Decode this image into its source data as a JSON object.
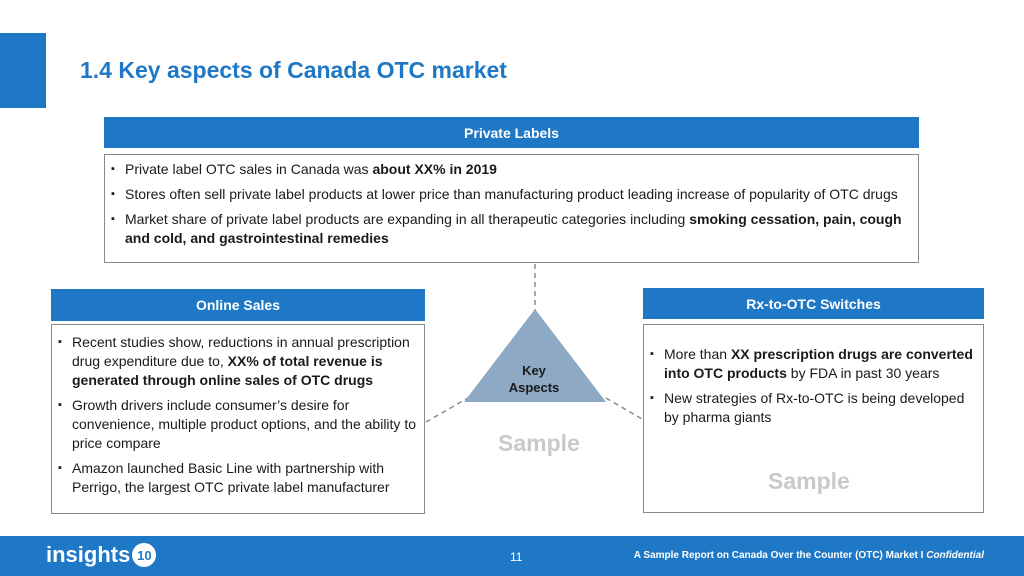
{
  "title": "1.4 Key aspects of Canada OTC market",
  "private_labels": {
    "header": "Private Labels",
    "items": [
      {
        "pre": "Private label OTC sales in Canada was ",
        "bold": "about XX% in 2019",
        "post": ""
      },
      {
        "pre": "Stores often sell private label products at lower price than manufacturing product leading increase of popularity of OTC drugs",
        "bold": "",
        "post": ""
      },
      {
        "pre": "Market share of private label products are expanding in all therapeutic categories including ",
        "bold": "smoking cessation, pain, cough and cold, and gastrointestinal remedies",
        "post": ""
      }
    ]
  },
  "online_sales": {
    "header": "Online Sales",
    "items": [
      {
        "pre": "Recent studies show, reductions in annual prescription drug expenditure due to, ",
        "bold": "XX% of total revenue is generated through online sales of OTC drugs",
        "post": ""
      },
      {
        "pre": "Growth drivers include consumer’s desire for convenience, multiple product options, and the ability to price compare",
        "bold": "",
        "post": ""
      },
      {
        "pre": "Amazon launched Basic Line with partnership with Perrigo, the largest OTC private label manufacturer",
        "bold": "",
        "post": ""
      }
    ]
  },
  "rx_switches": {
    "header": "Rx-to-OTC Switches",
    "items": [
      {
        "pre": "More than ",
        "bold": "XX prescription drugs are converted into OTC products",
        "post": " by FDA in past 30 years"
      },
      {
        "pre": "New strategies of Rx-to-OTC is being developed by pharma giants",
        "bold": "",
        "post": ""
      }
    ]
  },
  "center": {
    "label_line1": "Key",
    "label_line2": "Aspects",
    "triangle_color": "#8da9c4"
  },
  "watermarks": {
    "center": "Sample",
    "right": "Sample"
  },
  "footer": {
    "logo_text": "insights",
    "logo_badge": "10",
    "page_number": "11",
    "note": "A Sample Report on Canada Over the Counter (OTC) Market I ",
    "note_italic": "Confidential"
  },
  "colors": {
    "accent": "#1f78c6",
    "watermark": "#c9c9c9"
  }
}
